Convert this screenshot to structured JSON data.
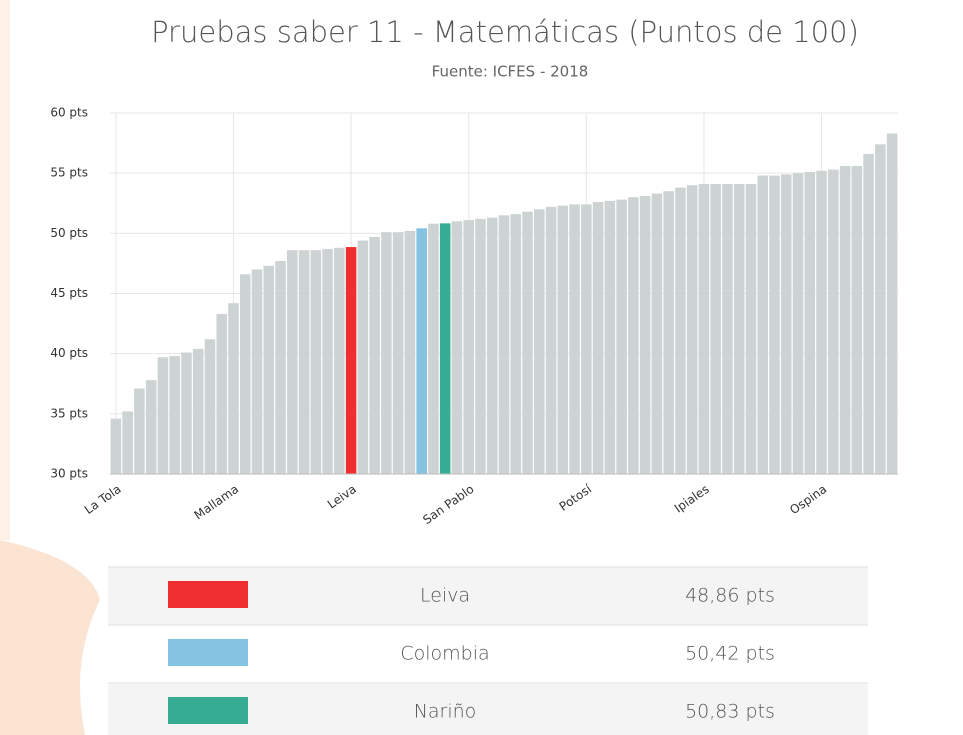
{
  "chart_data": {
    "type": "bar",
    "title": "Pruebas saber 11 - Matemáticas (Puntos de 100)",
    "subtitle": "Fuente: ICFES - 2018",
    "categories": [
      "La Tola",
      null,
      null,
      null,
      null,
      null,
      null,
      null,
      null,
      null,
      "Mallama",
      null,
      null,
      null,
      null,
      null,
      null,
      null,
      null,
      null,
      "Leiva",
      null,
      null,
      null,
      null,
      null,
      null,
      null,
      null,
      null,
      "San Pablo",
      null,
      null,
      null,
      null,
      null,
      null,
      null,
      null,
      null,
      "Potosí",
      null,
      null,
      null,
      null,
      null,
      null,
      null,
      null,
      null,
      "Ipiales",
      null,
      null,
      null,
      null,
      null,
      null,
      null,
      null,
      null,
      "Ospina",
      null,
      null,
      null,
      null,
      null,
      null
    ],
    "values": [
      34.6,
      35.2,
      37.1,
      37.8,
      39.7,
      39.8,
      40.1,
      40.4,
      41.2,
      43.3,
      44.2,
      46.6,
      47.0,
      47.3,
      47.7,
      48.6,
      48.6,
      48.6,
      48.7,
      48.8,
      48.86,
      49.4,
      49.7,
      50.1,
      50.1,
      50.2,
      50.42,
      50.8,
      50.83,
      51.0,
      51.1,
      51.2,
      51.3,
      51.5,
      51.6,
      51.8,
      52.0,
      52.2,
      52.3,
      52.4,
      52.4,
      52.6,
      52.7,
      52.8,
      53.0,
      53.1,
      53.3,
      53.5,
      53.8,
      54.0,
      54.1,
      54.1,
      54.1,
      54.1,
      54.1,
      54.8,
      54.8,
      54.9,
      55.0,
      55.1,
      55.2,
      55.3,
      55.6,
      55.6,
      56.6,
      57.4,
      58.3
    ],
    "colors": [
      "#cdd3d3",
      "#cdd3d3",
      "#cdd3d3",
      "#cdd3d3",
      "#cdd3d3",
      "#cdd3d3",
      "#cdd3d3",
      "#cdd3d3",
      "#cdd3d3",
      "#cdd3d3",
      "#cdd3d3",
      "#cdd3d3",
      "#cdd3d3",
      "#cdd3d3",
      "#cdd3d3",
      "#cdd3d3",
      "#cdd3d3",
      "#cdd3d3",
      "#cdd3d3",
      "#cdd3d3",
      "#ef2f2f",
      "#cdd3d3",
      "#cdd3d3",
      "#cdd3d3",
      "#cdd3d3",
      "#cdd3d3",
      "#86c2e2",
      "#cdd3d3",
      "#36ad92",
      "#cdd3d3",
      "#cdd3d3",
      "#cdd3d3",
      "#cdd3d3",
      "#cdd3d3",
      "#cdd3d3",
      "#cdd3d3",
      "#cdd3d3",
      "#cdd3d3",
      "#cdd3d3",
      "#cdd3d3",
      "#cdd3d3",
      "#cdd3d3",
      "#cdd3d3",
      "#cdd3d3",
      "#cdd3d3",
      "#cdd3d3",
      "#cdd3d3",
      "#cdd3d3",
      "#cdd3d3",
      "#cdd3d3",
      "#cdd3d3",
      "#cdd3d3",
      "#cdd3d3",
      "#cdd3d3",
      "#cdd3d3",
      "#cdd3d3",
      "#cdd3d3",
      "#cdd3d3",
      "#cdd3d3",
      "#cdd3d3",
      "#cdd3d3",
      "#cdd3d3",
      "#cdd3d3",
      "#cdd3d3",
      "#cdd3d3",
      "#cdd3d3",
      "#cdd3d3"
    ],
    "ylim": [
      30,
      60
    ],
    "yticks": [
      {
        "value": 30,
        "label": "30 pts"
      },
      {
        "value": 35,
        "label": "35 pts"
      },
      {
        "value": 40,
        "label": "40 pts"
      },
      {
        "value": 45,
        "label": "45 pts"
      },
      {
        "value": 50,
        "label": "50 pts"
      },
      {
        "value": 55,
        "label": "55 pts"
      },
      {
        "value": 60,
        "label": "60 pts"
      }
    ],
    "grid": true,
    "legend": [
      {
        "name": "Leiva",
        "color": "#ef2f2f",
        "value": 48.86,
        "value_label": "48,86 pts"
      },
      {
        "name": "Colombia",
        "color": "#86c2e2",
        "value": 50.42,
        "value_label": "50,42 pts"
      },
      {
        "name": "Nariño",
        "color": "#36ad92",
        "value": 50.83,
        "value_label": "50,83 pts"
      }
    ]
  }
}
